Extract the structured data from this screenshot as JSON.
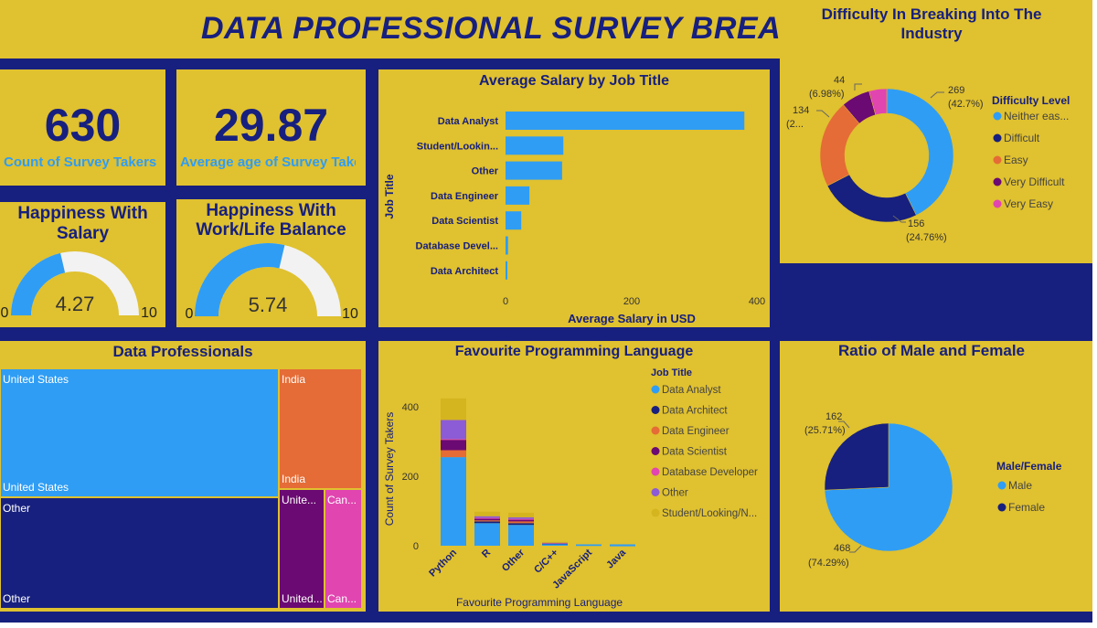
{
  "title": "DATA PROFESSIONAL SURVEY BREAK D",
  "kpis": {
    "count_value": "630",
    "count_label": "Count of Survey Takers",
    "age_value": "29.87",
    "age_label": "Average age of Survey Takers"
  },
  "gauges": {
    "salary": {
      "title_line1": "Happiness With",
      "title_line2": "Salary",
      "value": 4.27,
      "value_label": "4.27",
      "min_label": "0",
      "max_label": "10"
    },
    "balance": {
      "title_line1": "Happiness With",
      "title_line2": "Work/Life Balance",
      "value": 5.74,
      "value_label": "5.74",
      "min_label": "0",
      "max_label": "10"
    }
  },
  "colors": {
    "background": "#17207e",
    "tile": "#e0c12f",
    "accent_blue": "#2f9df4",
    "navy": "#17207e",
    "orange": "#e56c36",
    "purple": "#6b0a72",
    "pink": "#e145b0",
    "violet": "#8c5bd6",
    "gold": "#d5b51f"
  },
  "salary_chart": {
    "title": "Average Salary by Job Title",
    "ylabel": "Job Title",
    "xlabel": "Average Salary in USD",
    "xticks": [
      "0",
      "200",
      "400"
    ]
  },
  "difficulty_chart": {
    "title_line1": "Difficulty In Breaking Into The",
    "title_line2": "Industry",
    "legend_title": "Difficulty Level",
    "slice_labels": [
      {
        "value": "269",
        "pct": "(42.7%)"
      },
      {
        "value": "156",
        "pct": "(24.76%)"
      },
      {
        "value": "134",
        "pct": "(2..."
      },
      {
        "value": "44",
        "pct": "(6.98%)"
      }
    ]
  },
  "treemap": {
    "title": "Data Professionals",
    "cells": [
      {
        "label": "United States",
        "bottom_label": "United States"
      },
      {
        "label": "India",
        "bottom_label": "India"
      },
      {
        "label": "Other",
        "bottom_label": "Other"
      },
      {
        "label": "Unite...",
        "bottom_label": "United..."
      },
      {
        "label": "Can...",
        "bottom_label": "Can..."
      }
    ]
  },
  "language_chart": {
    "title": "Favourite Programming Language",
    "ylabel": "Count of Survey Takers",
    "xlabel": "Favourite Programming Language",
    "legend_title": "Job Title",
    "legend": [
      "Data Analyst",
      "Data Architect",
      "Data Engineer",
      "Data Scientist",
      "Database Developer",
      "Other",
      "Student/Looking/N..."
    ]
  },
  "gender_chart": {
    "title": "Ratio of Male and Female",
    "legend_title": "Male/Female",
    "male_value": "468",
    "male_pct": "(74.29%)",
    "female_value": "162",
    "female_pct": "(25.71%)"
  },
  "chart_data": [
    {
      "type": "bar",
      "title": "Average Salary by Job Title",
      "categories": [
        "Data Analyst",
        "Student/Lookin...",
        "Other",
        "Data Engineer",
        "Data Scientist",
        "Database Devel...",
        "Data Architect"
      ],
      "values": [
        380,
        92,
        90,
        38,
        25,
        4,
        3
      ],
      "xlabel": "Average Salary in USD",
      "ylabel": "Job Title",
      "xlim": [
        0,
        400
      ]
    },
    {
      "type": "pie",
      "title": "Difficulty In Breaking Into The Industry",
      "labels": [
        "Neither eas...",
        "Difficult",
        "Easy",
        "Very Difficult",
        "Very Easy"
      ],
      "values": [
        269,
        156,
        134,
        44,
        27
      ],
      "colors": [
        "#2f9df4",
        "#17207e",
        "#e56c36",
        "#6b0a72",
        "#e145b0"
      ]
    },
    {
      "type": "bar",
      "title": "Favourite Programming Language",
      "categories": [
        "Python",
        "R",
        "Other",
        "C/C++",
        "JavaScript",
        "Java"
      ],
      "series": [
        {
          "name": "Data Analyst",
          "values": [
            255,
            65,
            60,
            6,
            2,
            1
          ],
          "color": "#2f9df4"
        },
        {
          "name": "Data Architect",
          "values": [
            0,
            5,
            5,
            1,
            0,
            0
          ],
          "color": "#17207e"
        },
        {
          "name": "Data Engineer",
          "values": [
            20,
            3,
            5,
            1,
            1,
            0
          ],
          "color": "#e56c36"
        },
        {
          "name": "Data Scientist",
          "values": [
            30,
            5,
            5,
            0,
            0,
            0
          ],
          "color": "#6b0a72"
        },
        {
          "name": "Database Developer",
          "values": [
            2,
            2,
            2,
            0,
            0,
            0
          ],
          "color": "#e145b0"
        },
        {
          "name": "Other",
          "values": [
            55,
            5,
            5,
            1,
            0,
            0
          ],
          "color": "#8c5bd6"
        },
        {
          "name": "Student/Looking/N...",
          "values": [
            62,
            13,
            13,
            2,
            0,
            0
          ],
          "color": "#d5b51f"
        }
      ],
      "xlabel": "Favourite Programming Language",
      "ylabel": "Count of Survey Takers",
      "yticks": [
        "0",
        "200",
        "400"
      ],
      "ylim": [
        0,
        450
      ]
    },
    {
      "type": "pie",
      "title": "Ratio of Male and Female",
      "labels": [
        "Male",
        "Female"
      ],
      "values": [
        468,
        162
      ],
      "colors": [
        "#2f9df4",
        "#17207e"
      ]
    }
  ]
}
